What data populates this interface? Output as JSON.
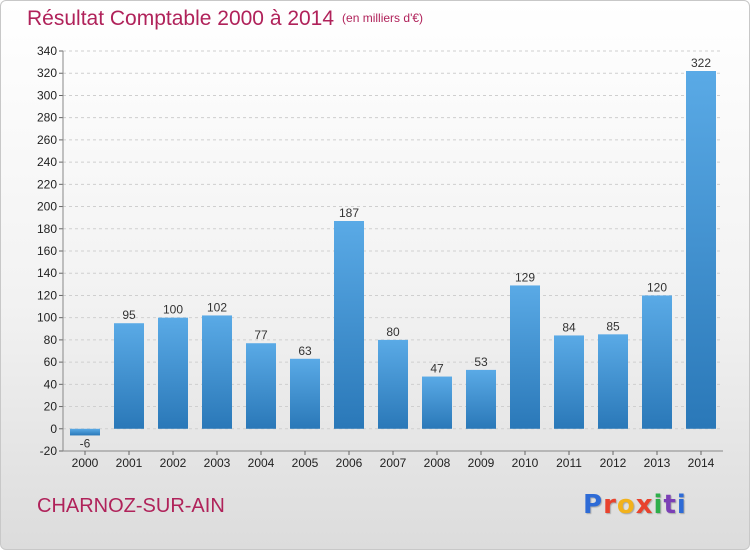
{
  "header": {
    "title": "Résultat Comptable 2000 à 2014",
    "subtitle": "(en milliers d'€)"
  },
  "footer": {
    "commune": "CHARNOZ-SUR-AIN",
    "logo_text": "Proxiti"
  },
  "colors": {
    "title": "#b0225a",
    "bar_light": "#5aaae6",
    "bar_dark": "#2a78b8",
    "grid": "#cfcfcf"
  },
  "chart_data": {
    "type": "bar",
    "categories": [
      "2000",
      "2001",
      "2002",
      "2003",
      "2004",
      "2005",
      "2006",
      "2007",
      "2008",
      "2009",
      "2010",
      "2011",
      "2012",
      "2013",
      "2014"
    ],
    "values": [
      -6,
      95,
      100,
      102,
      77,
      63,
      187,
      80,
      47,
      53,
      129,
      84,
      85,
      120,
      322
    ],
    "title": "Résultat Comptable 2000 à 2014",
    "subtitle": "(en milliers d'€)",
    "xlabel": "",
    "ylabel": "",
    "ylim": [
      -20,
      340
    ],
    "yticks": [
      -20,
      0,
      20,
      40,
      60,
      80,
      100,
      120,
      140,
      160,
      180,
      200,
      220,
      240,
      260,
      280,
      300,
      320,
      340
    ],
    "grid": true,
    "legend": "none"
  }
}
